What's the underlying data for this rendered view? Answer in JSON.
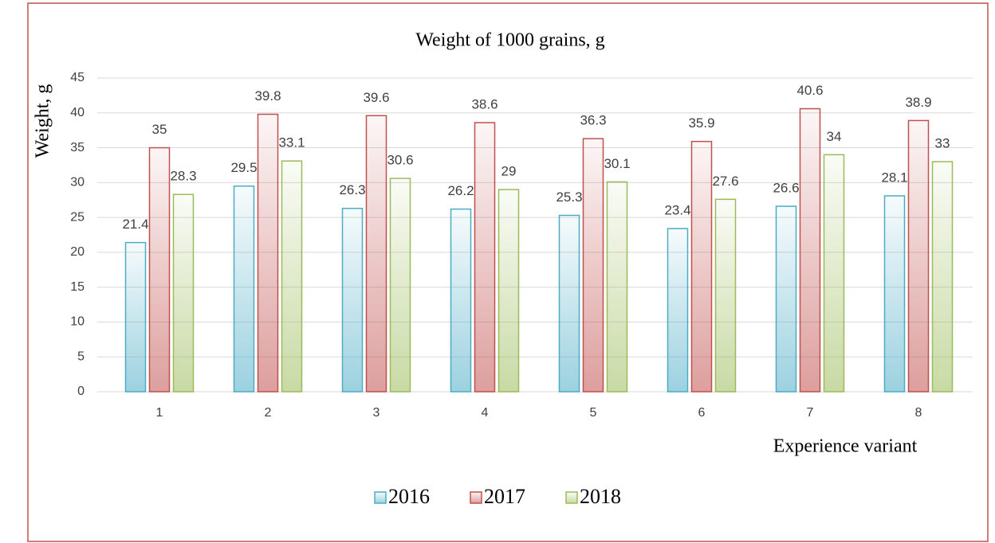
{
  "chart_data": {
    "type": "bar",
    "title": "Weight of 1000 grains, g",
    "y_label": "Weight, g",
    "x_label": "Experience variant",
    "categories": [
      "1",
      "2",
      "3",
      "4",
      "5",
      "6",
      "7",
      "8"
    ],
    "series": [
      {
        "name": "2016",
        "color": "#4bacc6",
        "values": [
          21.4,
          29.5,
          26.3,
          26.2,
          25.3,
          23.4,
          26.6,
          28.1
        ]
      },
      {
        "name": "2017",
        "color": "#c0504d",
        "values": [
          35,
          39.8,
          39.6,
          38.6,
          36.3,
          35.9,
          40.6,
          38.9
        ]
      },
      {
        "name": "2018",
        "color": "#9bbb59",
        "values": [
          28.3,
          33.1,
          30.6,
          29,
          30.1,
          27.6,
          34,
          33
        ]
      }
    ],
    "ylim": [
      0,
      45
    ],
    "yticks": [
      0,
      5,
      10,
      15,
      20,
      25,
      30,
      35,
      40,
      45
    ],
    "grid": true,
    "legend": "bottom"
  }
}
